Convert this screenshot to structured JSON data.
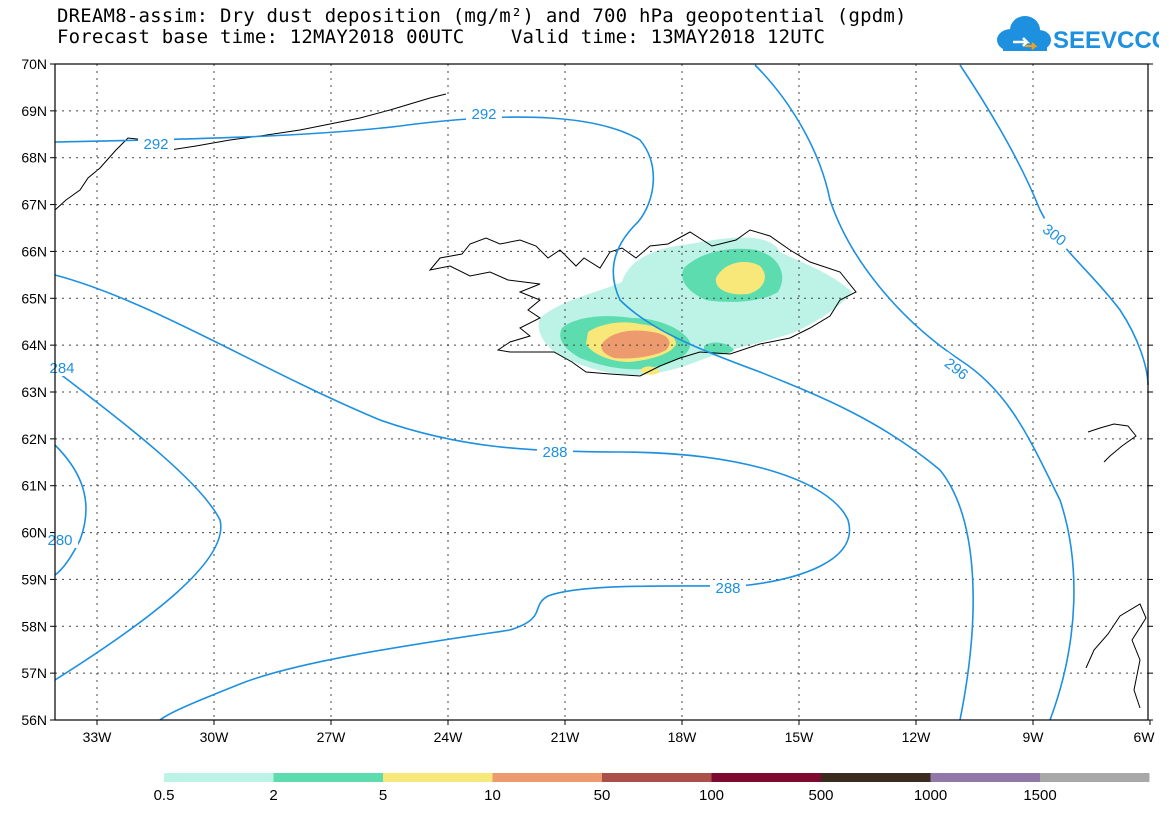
{
  "header": {
    "title_line1": "DREAM8-assim: Dry dust deposition (mg/m²) and 700 hPa geopotential (gpdm)",
    "title_line2": "Forecast base time: 12MAY2018 00UTC    Valid time: 13MAY2018 12UTC"
  },
  "logo": {
    "text": "SEEVCCC",
    "color": "#1e90e0"
  },
  "map": {
    "lat_labels": [
      "70N",
      "69N",
      "68N",
      "67N",
      "66N",
      "65N",
      "64N",
      "63N",
      "62N",
      "61N",
      "60N",
      "59N",
      "58N",
      "57N",
      "56N"
    ],
    "lon_labels": [
      "33W",
      "30W",
      "27W",
      "24W",
      "21W",
      "18W",
      "15W",
      "12W",
      "9W",
      "6W"
    ],
    "contour_color": "#1e90e0",
    "contour_labels": [
      "292",
      "292",
      "288",
      "288",
      "296",
      "300",
      "284",
      "280"
    ]
  },
  "legend": {
    "labels": [
      "0.5",
      "2",
      "5",
      "10",
      "50",
      "100",
      "500",
      "1000",
      "1500"
    ],
    "colors": [
      "#bdf2e6",
      "#5ddcb0",
      "#f8e87a",
      "#ec9a6e",
      "#aa5048",
      "#7e0a30",
      "#3a2b1e",
      "#9278a8",
      "#a8a8a8"
    ]
  }
}
